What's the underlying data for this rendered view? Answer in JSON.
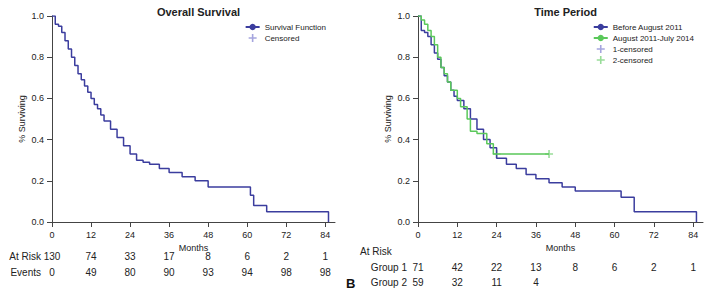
{
  "chart_data": [
    {
      "type": "step",
      "title": "Overall Survival",
      "x_label": "Months",
      "y_label": "% Surviving",
      "xlim": [
        0,
        87
      ],
      "xticks": [
        0,
        12,
        24,
        36,
        48,
        60,
        72,
        84
      ],
      "ylim": [
        0,
        1
      ],
      "yticks": [
        {
          "value": 0,
          "label": "0.0"
        },
        {
          "value": 0.2,
          "label": "0.2"
        },
        {
          "value": 0.4,
          "label": "0.4"
        },
        {
          "value": 0.6,
          "label": "0.6"
        },
        {
          "value": 0.8,
          "label": "0.8"
        },
        {
          "value": 1,
          "label": "1.0"
        }
      ],
      "grid": false,
      "legend": "upper right",
      "series": [
        {
          "name": "Survival Function",
          "type": "step",
          "color": "#3b3d9e",
          "x": [
            0,
            1,
            2,
            3,
            4,
            5,
            6,
            7,
            8,
            9,
            10,
            11,
            12,
            13,
            14,
            15,
            16,
            18,
            20,
            22,
            24,
            26,
            28,
            30,
            33,
            36,
            40,
            44,
            48,
            60,
            61,
            62,
            66,
            84,
            85
          ],
          "values": [
            1,
            0.96,
            0.95,
            0.92,
            0.88,
            0.84,
            0.8,
            0.76,
            0.72,
            0.69,
            0.66,
            0.63,
            0.6,
            0.57,
            0.55,
            0.52,
            0.49,
            0.45,
            0.41,
            0.37,
            0.33,
            0.3,
            0.29,
            0.28,
            0.26,
            0.24,
            0.22,
            0.2,
            0.17,
            0.17,
            0.13,
            0.08,
            0.05,
            0.05,
            0
          ]
        },
        {
          "name": "Censored",
          "type": "scatter",
          "marker": "plus",
          "color": "#8f8fd6",
          "x": [],
          "values": []
        }
      ],
      "risk_table": {
        "rows": [
          {
            "label": "At Risk",
            "values": [
              130,
              74,
              33,
              17,
              8,
              6,
              2,
              1
            ]
          },
          {
            "label": "Events",
            "values": [
              0,
              49,
              80,
              90,
              93,
              94,
              98,
              98
            ]
          }
        ]
      }
    },
    {
      "type": "step",
      "title": "Time Period",
      "x_label": "Months",
      "y_label": "% Surviving",
      "panel_label": "B",
      "xlim": [
        0,
        87
      ],
      "xticks": [
        0,
        12,
        24,
        36,
        48,
        60,
        72,
        84
      ],
      "ylim": [
        0,
        1
      ],
      "yticks": [
        {
          "value": 0,
          "label": "0.0"
        },
        {
          "value": 0.2,
          "label": "0.2"
        },
        {
          "value": 0.4,
          "label": "0.4"
        },
        {
          "value": 0.6,
          "label": "0.6"
        },
        {
          "value": 0.8,
          "label": "0.8"
        },
        {
          "value": 1,
          "label": "1.0"
        }
      ],
      "grid": false,
      "legend": "upper right",
      "series": [
        {
          "name": "Before August 2011",
          "type": "step",
          "color": "#3b3d9e",
          "x": [
            0,
            1,
            2,
            3,
            4,
            5,
            6,
            7,
            8,
            9,
            10,
            11,
            12,
            14,
            16,
            18,
            20,
            22,
            24,
            27,
            30,
            33,
            36,
            40,
            44,
            48,
            60,
            62,
            66,
            84,
            85
          ],
          "values": [
            1,
            0.93,
            0.92,
            0.9,
            0.86,
            0.82,
            0.79,
            0.75,
            0.71,
            0.68,
            0.64,
            0.61,
            0.59,
            0.55,
            0.5,
            0.45,
            0.4,
            0.36,
            0.31,
            0.28,
            0.26,
            0.23,
            0.21,
            0.19,
            0.17,
            0.15,
            0.15,
            0.12,
            0.05,
            0.05,
            0
          ]
        },
        {
          "name": "August 2011-July 2014",
          "type": "step",
          "color": "#5ac85a",
          "x": [
            0,
            1,
            2,
            3,
            4,
            5,
            6,
            7,
            8,
            9,
            10,
            12,
            13,
            15,
            16,
            18,
            20,
            21,
            23,
            24,
            40
          ],
          "values": [
            1,
            0.98,
            0.96,
            0.93,
            0.9,
            0.86,
            0.8,
            0.75,
            0.72,
            0.68,
            0.64,
            0.6,
            0.56,
            0.5,
            0.44,
            0.43,
            0.43,
            0.38,
            0.33,
            0.33,
            0.33
          ]
        },
        {
          "name": "1-censored",
          "type": "scatter",
          "marker": "plus",
          "color": "#8f8fd6",
          "x": [],
          "values": []
        },
        {
          "name": "2-censored",
          "type": "scatter",
          "marker": "plus",
          "color": "#7fd37f",
          "x": [
            24,
            40
          ],
          "values": [
            0.33,
            0.33
          ]
        }
      ],
      "risk_table": {
        "title": "At Risk",
        "rows": [
          {
            "label": "Group 1",
            "values": [
              71,
              42,
              22,
              13,
              8,
              6,
              2,
              1
            ]
          },
          {
            "label": "Group 2",
            "values": [
              59,
              32,
              11,
              4
            ]
          }
        ]
      }
    }
  ]
}
